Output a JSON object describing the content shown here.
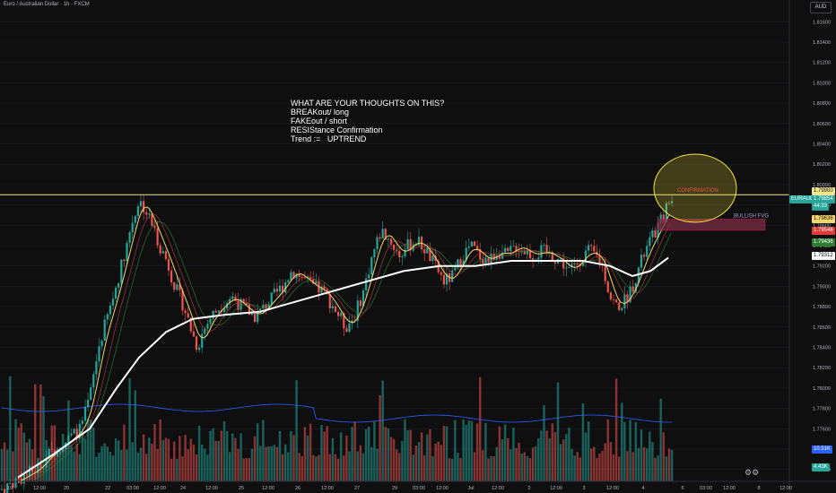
{
  "header": {
    "symbol_title": "Euro / Australian Dollar · 1h · FXCM",
    "currency": "AUD"
  },
  "note": {
    "lines": [
      "WHAT ARE YOUR THOUGHTS ON THIS?",
      "",
      "BREAKout/ long",
      "FAKEout / short",
      "RESIStance Confirmation",
      "",
      "",
      "Trend :=   UPTREND"
    ]
  },
  "annotations": {
    "confirmation": "CONFIRMATION",
    "bullish_fvg": "BULLISH FVG"
  },
  "price_axis": {
    "ticks": [
      "1.81600",
      "1.81400",
      "1.81200",
      "1.81000",
      "1.80800",
      "1.80600",
      "1.80400",
      "1.80200",
      "1.80000",
      "1.79800",
      "1.79600",
      "1.79400",
      "1.79200",
      "1.79000",
      "1.78800",
      "1.78600",
      "1.78400",
      "1.78200",
      "1.78000",
      "1.77800",
      "1.77600",
      "1.77400",
      "1.77200"
    ],
    "labels": {
      "resistance": "1.79900",
      "symbol": "EURAUD",
      "last_price": "1.79854",
      "countdown": "44:33",
      "ma_fast": "1.79636",
      "ma_red": "1.79546",
      "ma_green": "1.79436",
      "ma_slow": "1.79312",
      "vol_ma": "10.51K",
      "vol_last": "4.43K"
    }
  },
  "time_axis": {
    "ticks": [
      "19",
      "12:00",
      "20",
      "22",
      "03:00",
      "12:00",
      "24",
      "12:00",
      "25",
      "12:00",
      "26",
      "12:00",
      "27",
      "29",
      "03:00",
      "12:00",
      "Jul",
      "12:00",
      "2",
      "12:00",
      "3",
      "12:00",
      "4",
      "6",
      "03:00",
      "12:00",
      "8",
      "12:00"
    ]
  },
  "colors": {
    "background": "#0f0f0f",
    "bull": "#26a69a",
    "bear": "#ef5350",
    "resistance_line": "#f0e68c",
    "slow_ma": "#ffffff",
    "fast_ma": "#f5d76e",
    "volume_ma": "#2962ff",
    "highlight_circle": "#f5e342",
    "fvg_box": "#7b2d45"
  },
  "chart_data": {
    "type": "candlestick",
    "symbol": "EURAUD",
    "interval": "1h",
    "ylim": [
      1.771,
      1.817
    ],
    "resistance_level": 1.799,
    "last_price": 1.79854,
    "path": [
      [
        0,
        1.77
      ],
      [
        40,
        1.772
      ],
      [
        55,
        1.7735
      ],
      [
        70,
        1.7745
      ],
      [
        90,
        1.776
      ],
      [
        100,
        1.779
      ],
      [
        110,
        1.784
      ],
      [
        118,
        1.7865
      ],
      [
        128,
        1.7895
      ],
      [
        138,
        1.793
      ],
      [
        148,
        1.7965
      ],
      [
        155,
        1.7985
      ],
      [
        162,
        1.7975
      ],
      [
        170,
        1.796
      ],
      [
        178,
        1.794
      ],
      [
        186,
        1.7925
      ],
      [
        195,
        1.79
      ],
      [
        205,
        1.788
      ],
      [
        212,
        1.786
      ],
      [
        220,
        1.784
      ],
      [
        226,
        1.7855
      ],
      [
        235,
        1.787
      ],
      [
        245,
        1.788
      ],
      [
        258,
        1.789
      ],
      [
        270,
        1.788
      ],
      [
        285,
        1.787
      ],
      [
        300,
        1.7885
      ],
      [
        315,
        1.79
      ],
      [
        325,
        1.7915
      ],
      [
        335,
        1.791
      ],
      [
        348,
        1.79
      ],
      [
        360,
        1.7895
      ],
      [
        372,
        1.788
      ],
      [
        385,
        1.786
      ],
      [
        395,
        1.787
      ],
      [
        405,
        1.7895
      ],
      [
        415,
        1.793
      ],
      [
        425,
        1.7955
      ],
      [
        435,
        1.7945
      ],
      [
        445,
        1.793
      ],
      [
        455,
        1.794
      ],
      [
        465,
        1.7945
      ],
      [
        475,
        1.7935
      ],
      [
        485,
        1.792
      ],
      [
        495,
        1.7905
      ],
      [
        505,
        1.791
      ],
      [
        515,
        1.793
      ],
      [
        525,
        1.794
      ],
      [
        535,
        1.793
      ],
      [
        545,
        1.7925
      ],
      [
        555,
        1.7935
      ],
      [
        565,
        1.793
      ],
      [
        575,
        1.794
      ],
      [
        585,
        1.7935
      ],
      [
        595,
        1.793
      ],
      [
        605,
        1.7935
      ],
      [
        615,
        1.793
      ],
      [
        625,
        1.7925
      ],
      [
        635,
        1.7915
      ],
      [
        645,
        1.7925
      ],
      [
        655,
        1.7935
      ],
      [
        665,
        1.793
      ],
      [
        672,
        1.792
      ],
      [
        680,
        1.789
      ],
      [
        688,
        1.788
      ],
      [
        696,
        1.7885
      ],
      [
        705,
        1.79
      ],
      [
        715,
        1.7925
      ],
      [
        725,
        1.7945
      ],
      [
        735,
        1.796
      ],
      [
        742,
        1.7975
      ],
      [
        748,
        1.7985
      ]
    ],
    "slow_ma": [
      [
        20,
        1.7712
      ],
      [
        60,
        1.7735
      ],
      [
        100,
        1.776
      ],
      [
        130,
        1.78
      ],
      [
        155,
        1.783
      ],
      [
        185,
        1.7855
      ],
      [
        215,
        1.7868
      ],
      [
        250,
        1.7872
      ],
      [
        290,
        1.7875
      ],
      [
        330,
        1.7885
      ],
      [
        370,
        1.7895
      ],
      [
        410,
        1.7905
      ],
      [
        450,
        1.7915
      ],
      [
        490,
        1.792
      ],
      [
        530,
        1.792
      ],
      [
        570,
        1.7925
      ],
      [
        610,
        1.7925
      ],
      [
        650,
        1.7925
      ],
      [
        680,
        1.792
      ],
      [
        705,
        1.791
      ],
      [
        725,
        1.7915
      ],
      [
        745,
        1.7928
      ]
    ],
    "fvg_zone": [
      1.7955,
      1.7966
    ],
    "volume_scale": 20
  }
}
